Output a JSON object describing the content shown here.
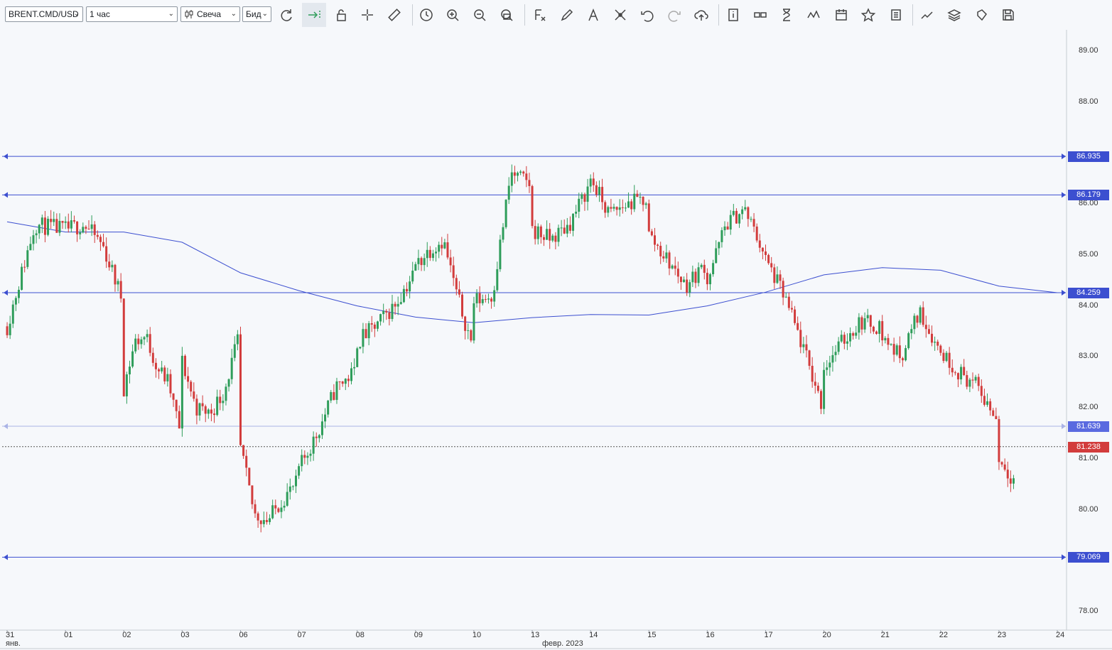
{
  "toolbar": {
    "symbol": "BRENT.CMD/USD",
    "timeframe": "1 час",
    "chart_type": "Свеча",
    "price_side": "Бид",
    "icons": [
      "refresh-icon",
      "autoscroll-icon",
      "lock-icon",
      "crosshair-icon",
      "ruler-icon",
      "clock-icon",
      "zoom-in-icon",
      "zoom-out-icon",
      "zoom-reset-icon",
      "formula-icon",
      "pencil-icon",
      "text-tool-icon",
      "nodes-icon",
      "undo-icon",
      "redo-icon",
      "cloud-upload-icon",
      "info-icon",
      "compare-icon",
      "hourglass-icon",
      "wave-icon",
      "calendar-icon",
      "star-icon",
      "list-icon",
      "trend-tools-icon",
      "layers-icon",
      "theme-icon",
      "save-icon"
    ]
  },
  "colors": {
    "bull": "#2e9d5a",
    "bear": "#d23c3c",
    "level_line": "#3c4fd0",
    "level_line_faint": "#aab3e6",
    "last_price_tag": "#d23c3c",
    "ma_line": "#3c4fd0"
  },
  "chart_data": {
    "type": "candlestick",
    "symbol": "BRENT.CMD/USD",
    "timeframe": "1 час",
    "ylim": [
      77.6,
      89.3
    ],
    "y_ticks": [
      "89.00",
      "88.00",
      "86.00",
      "85.00",
      "84.00",
      "83.00",
      "82.00",
      "81.00",
      "80.00",
      "78.00"
    ],
    "x_ticks": [
      "31",
      "01",
      "02",
      "03",
      "06",
      "07",
      "08",
      "09",
      "10",
      "13",
      "14",
      "15",
      "16",
      "17",
      "20",
      "21",
      "22",
      "23",
      "24"
    ],
    "x_sub_labels": [
      "янв.",
      "февр. 2023"
    ],
    "horizontal_levels": [
      {
        "label": "86.935",
        "value": 86.935,
        "style": "solid"
      },
      {
        "label": "86.179",
        "value": 86.179,
        "style": "solid"
      },
      {
        "label": "84.259",
        "value": 84.259,
        "style": "solid"
      },
      {
        "label": "81.639",
        "value": 81.639,
        "style": "faint"
      },
      {
        "label": "79.069",
        "value": 79.069,
        "style": "solid"
      }
    ],
    "last_price": {
      "label": "81.238",
      "value": 81.238
    },
    "moving_average": [
      [
        0,
        85.65
      ],
      [
        1,
        85.45
      ],
      [
        2,
        85.45
      ],
      [
        3,
        85.25
      ],
      [
        4,
        84.65
      ],
      [
        5,
        84.3
      ],
      [
        6,
        84.0
      ],
      [
        7,
        83.78
      ],
      [
        8,
        83.67
      ],
      [
        9,
        83.77
      ],
      [
        10,
        83.83
      ],
      [
        11,
        83.82
      ],
      [
        12,
        84.0
      ],
      [
        13,
        84.27
      ],
      [
        14,
        84.61
      ],
      [
        15,
        84.75
      ],
      [
        16,
        84.7
      ],
      [
        17,
        84.39
      ],
      [
        18,
        84.26
      ]
    ],
    "candles_approx": [
      {
        "day": "31",
        "path": [
          83.6,
          85.6,
          85.5
        ]
      },
      {
        "day": "01",
        "path": [
          85.5,
          85.6,
          85.2,
          84.2
        ]
      },
      {
        "day": "02",
        "path": [
          82.4,
          83.3,
          83.4,
          82.8,
          82.5,
          81.6
        ]
      },
      {
        "day": "03",
        "path": [
          82.9,
          82.0,
          81.9,
          82.3,
          83.3
        ]
      },
      {
        "day": "06",
        "path": [
          81.2,
          79.9,
          79.8,
          80.2,
          80.5
        ]
      },
      {
        "day": "07",
        "path": [
          80.8,
          81.5,
          82.4,
          82.7
        ]
      },
      {
        "day": "08",
        "path": [
          83.3,
          83.6,
          84.0,
          84.6
        ]
      },
      {
        "day": "09",
        "path": [
          84.8,
          85.1,
          85.3,
          84.2,
          83.3
        ]
      },
      {
        "day": "10",
        "path": [
          84.1,
          84.2,
          86.6,
          86.4
        ]
      },
      {
        "day": "13",
        "path": [
          85.5,
          85.3,
          85.6,
          86.3
        ]
      },
      {
        "day": "14",
        "path": [
          86.5,
          85.8,
          86.0,
          86.1
        ]
      },
      {
        "day": "15",
        "path": [
          85.4,
          84.9,
          84.4,
          84.8
        ]
      },
      {
        "day": "16",
        "path": [
          84.5,
          85.6,
          85.9,
          85.1
        ]
      },
      {
        "day": "17",
        "path": [
          84.9,
          84.2,
          83.2,
          82.1
        ]
      },
      {
        "day": "20",
        "path": [
          82.8,
          83.3,
          83.7,
          83.6
        ]
      },
      {
        "day": "21",
        "path": [
          83.4,
          83.0,
          83.9,
          83.2
        ]
      },
      {
        "day": "22",
        "path": [
          83.1,
          82.7,
          82.4,
          81.8
        ]
      },
      {
        "day": "23",
        "path": [
          81.0,
          80.5,
          80.9,
          81.2
        ]
      }
    ]
  }
}
